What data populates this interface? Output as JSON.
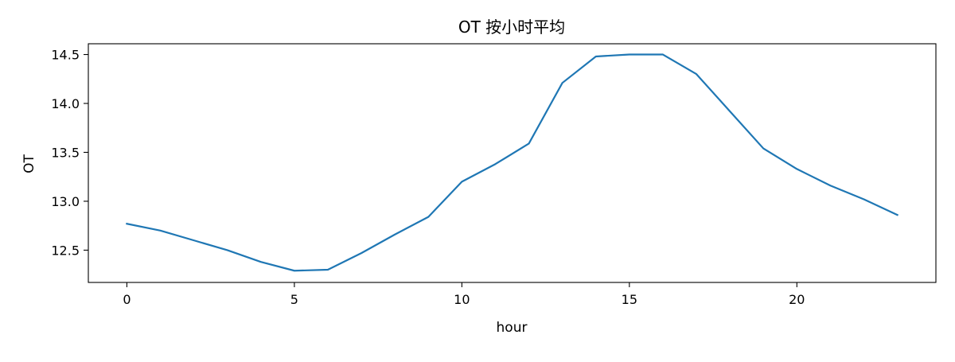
{
  "chart_data": {
    "type": "line",
    "title": "OT 按小时平均",
    "xlabel": "hour",
    "ylabel": "OT",
    "xlim": [
      -1.15,
      24.15
    ],
    "ylim": [
      12.17,
      14.61
    ],
    "xticks": [
      0,
      5,
      10,
      15,
      20
    ],
    "yticks": [
      12.5,
      13.0,
      13.5,
      14.0,
      14.5
    ],
    "xtick_labels": [
      "0",
      "5",
      "10",
      "15",
      "20"
    ],
    "ytick_labels": [
      "12.5",
      "13.0",
      "13.5",
      "14.0",
      "14.5"
    ],
    "grid": false,
    "series": [
      {
        "color": "#1f77b4",
        "x": [
          0,
          1,
          2,
          3,
          4,
          5,
          6,
          7,
          8,
          9,
          10,
          11,
          12,
          13,
          14,
          15,
          16,
          17,
          18,
          19,
          20,
          21,
          22,
          23
        ],
        "y": [
          12.77,
          12.7,
          12.6,
          12.5,
          12.38,
          12.29,
          12.3,
          12.47,
          12.66,
          12.84,
          13.2,
          13.38,
          13.59,
          14.21,
          14.48,
          14.5,
          14.5,
          14.3,
          13.92,
          13.54,
          13.33,
          13.16,
          13.02,
          12.86
        ]
      }
    ]
  }
}
